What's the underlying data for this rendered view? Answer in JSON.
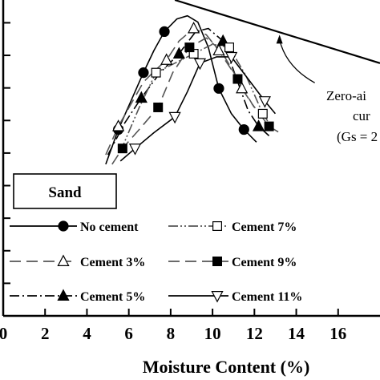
{
  "chart_data": {
    "type": "line",
    "xlabel": "Moisture Content (%)",
    "xlim": [
      0,
      18
    ],
    "xticks": [
      0,
      2,
      4,
      6,
      8,
      10,
      12,
      14,
      16
    ],
    "ylim": [
      0,
      1
    ],
    "sample_label": "Sand",
    "annotation": {
      "lines": [
        "Zero-ai",
        "cur",
        "(Gs = 2"
      ],
      "x": 13.2,
      "y": 0.89
    },
    "zero_air_voids_curve": {
      "x": [
        8.2,
        18
      ],
      "y": [
        1.0,
        0.8
      ]
    },
    "series": [
      {
        "name": "No cement",
        "marker": "circle",
        "marker_fill": "#000000",
        "dash": "solid",
        "color": "#000000",
        "points": [
          [
            5.5,
            0.59
          ],
          [
            6.7,
            0.77
          ],
          [
            7.7,
            0.9
          ],
          [
            10.3,
            0.72
          ],
          [
            11.5,
            0.59
          ]
        ],
        "curve": [
          [
            4.9,
            0.48
          ],
          [
            5.5,
            0.59
          ],
          [
            6.1,
            0.68
          ],
          [
            6.7,
            0.77
          ],
          [
            7.2,
            0.84
          ],
          [
            7.7,
            0.9
          ],
          [
            8.3,
            0.94
          ],
          [
            8.8,
            0.95
          ],
          [
            9.3,
            0.93
          ],
          [
            9.8,
            0.85
          ],
          [
            10.3,
            0.72
          ],
          [
            10.9,
            0.64
          ],
          [
            11.5,
            0.59
          ],
          [
            12.1,
            0.55
          ]
        ]
      },
      {
        "name": "Cement 3%",
        "marker": "triangle-up",
        "marker_fill": "none",
        "dash": "longdash",
        "color": "#555555",
        "points": [
          [
            5.5,
            0.6
          ],
          [
            7.8,
            0.81
          ],
          [
            9.1,
            0.91
          ],
          [
            10.3,
            0.84
          ],
          [
            11.4,
            0.72
          ]
        ],
        "curve": [
          [
            4.9,
            0.51
          ],
          [
            5.5,
            0.6
          ],
          [
            6.1,
            0.67
          ],
          [
            6.7,
            0.74
          ],
          [
            7.3,
            0.78
          ],
          [
            7.8,
            0.81
          ],
          [
            8.4,
            0.87
          ],
          [
            9.1,
            0.91
          ],
          [
            9.7,
            0.89
          ],
          [
            10.3,
            0.84
          ],
          [
            10.9,
            0.78
          ],
          [
            11.4,
            0.72
          ],
          [
            12.0,
            0.66
          ]
        ]
      },
      {
        "name": "Cement 5%",
        "marker": "triangle-up",
        "marker_fill": "#000000",
        "dash": "dashdot",
        "color": "#000000",
        "points": [
          [
            6.6,
            0.69
          ],
          [
            8.4,
            0.83
          ],
          [
            10.5,
            0.87
          ],
          [
            12.2,
            0.6
          ]
        ],
        "curve": [
          [
            5.0,
            0.51
          ],
          [
            5.8,
            0.61
          ],
          [
            6.6,
            0.69
          ],
          [
            7.5,
            0.77
          ],
          [
            8.4,
            0.83
          ],
          [
            9.2,
            0.9
          ],
          [
            9.8,
            0.91
          ],
          [
            10.5,
            0.87
          ],
          [
            11.1,
            0.76
          ],
          [
            11.7,
            0.65
          ],
          [
            12.2,
            0.6
          ],
          [
            12.7,
            0.57
          ]
        ]
      },
      {
        "name": "Cement 7%",
        "marker": "square",
        "marker_fill": "none",
        "dash": "dashdotdot",
        "color": "#555555",
        "points": [
          [
            7.3,
            0.77
          ],
          [
            9.1,
            0.83
          ],
          [
            10.8,
            0.85
          ],
          [
            12.4,
            0.64
          ]
        ],
        "curve": [
          [
            5.6,
            0.52
          ],
          [
            6.5,
            0.66
          ],
          [
            7.3,
            0.77
          ],
          [
            8.2,
            0.8
          ],
          [
            9.1,
            0.83
          ],
          [
            10.0,
            0.86
          ],
          [
            10.8,
            0.85
          ],
          [
            11.6,
            0.76
          ],
          [
            12.4,
            0.64
          ],
          [
            12.9,
            0.59
          ]
        ]
      },
      {
        "name": "Cement 9%",
        "marker": "square",
        "marker_fill": "#000000",
        "dash": "longdash",
        "color": "#555555",
        "points": [
          [
            5.7,
            0.53
          ],
          [
            7.4,
            0.66
          ],
          [
            8.9,
            0.85
          ],
          [
            11.2,
            0.75
          ],
          [
            12.7,
            0.6
          ]
        ],
        "curve": [
          [
            5.2,
            0.48
          ],
          [
            5.7,
            0.53
          ],
          [
            6.5,
            0.59
          ],
          [
            7.4,
            0.66
          ],
          [
            8.1,
            0.77
          ],
          [
            8.9,
            0.85
          ],
          [
            9.7,
            0.88
          ],
          [
            10.4,
            0.84
          ],
          [
            11.2,
            0.75
          ],
          [
            11.9,
            0.67
          ],
          [
            12.7,
            0.6
          ],
          [
            13.2,
            0.58
          ]
        ]
      },
      {
        "name": "Cement 11%",
        "marker": "triangle-down",
        "marker_fill": "none",
        "dash": "solid",
        "color": "#000000",
        "points": [
          [
            6.3,
            0.53
          ],
          [
            8.2,
            0.63
          ],
          [
            9.4,
            0.8
          ],
          [
            10.9,
            0.82
          ],
          [
            12.5,
            0.68
          ]
        ],
        "curve": [
          [
            5.6,
            0.49
          ],
          [
            6.3,
            0.53
          ],
          [
            7.2,
            0.58
          ],
          [
            8.2,
            0.63
          ],
          [
            8.8,
            0.71
          ],
          [
            9.4,
            0.8
          ],
          [
            10.2,
            0.82
          ],
          [
            10.9,
            0.82
          ],
          [
            11.7,
            0.75
          ],
          [
            12.5,
            0.68
          ],
          [
            13.0,
            0.64
          ]
        ]
      }
    ],
    "legend": {
      "placement": "bottom",
      "rows": [
        [
          {
            "series": 0,
            "label": "No cement"
          },
          {
            "series": 3,
            "label": "Cement 7%"
          }
        ],
        [
          {
            "series": 1,
            "label": "Cement 3%"
          },
          {
            "series": 4,
            "label": "Cement 9%"
          }
        ],
        [
          {
            "series": 2,
            "label": "Cement 5%"
          },
          {
            "series": 5,
            "label": "Cement 11%"
          }
        ]
      ]
    }
  }
}
